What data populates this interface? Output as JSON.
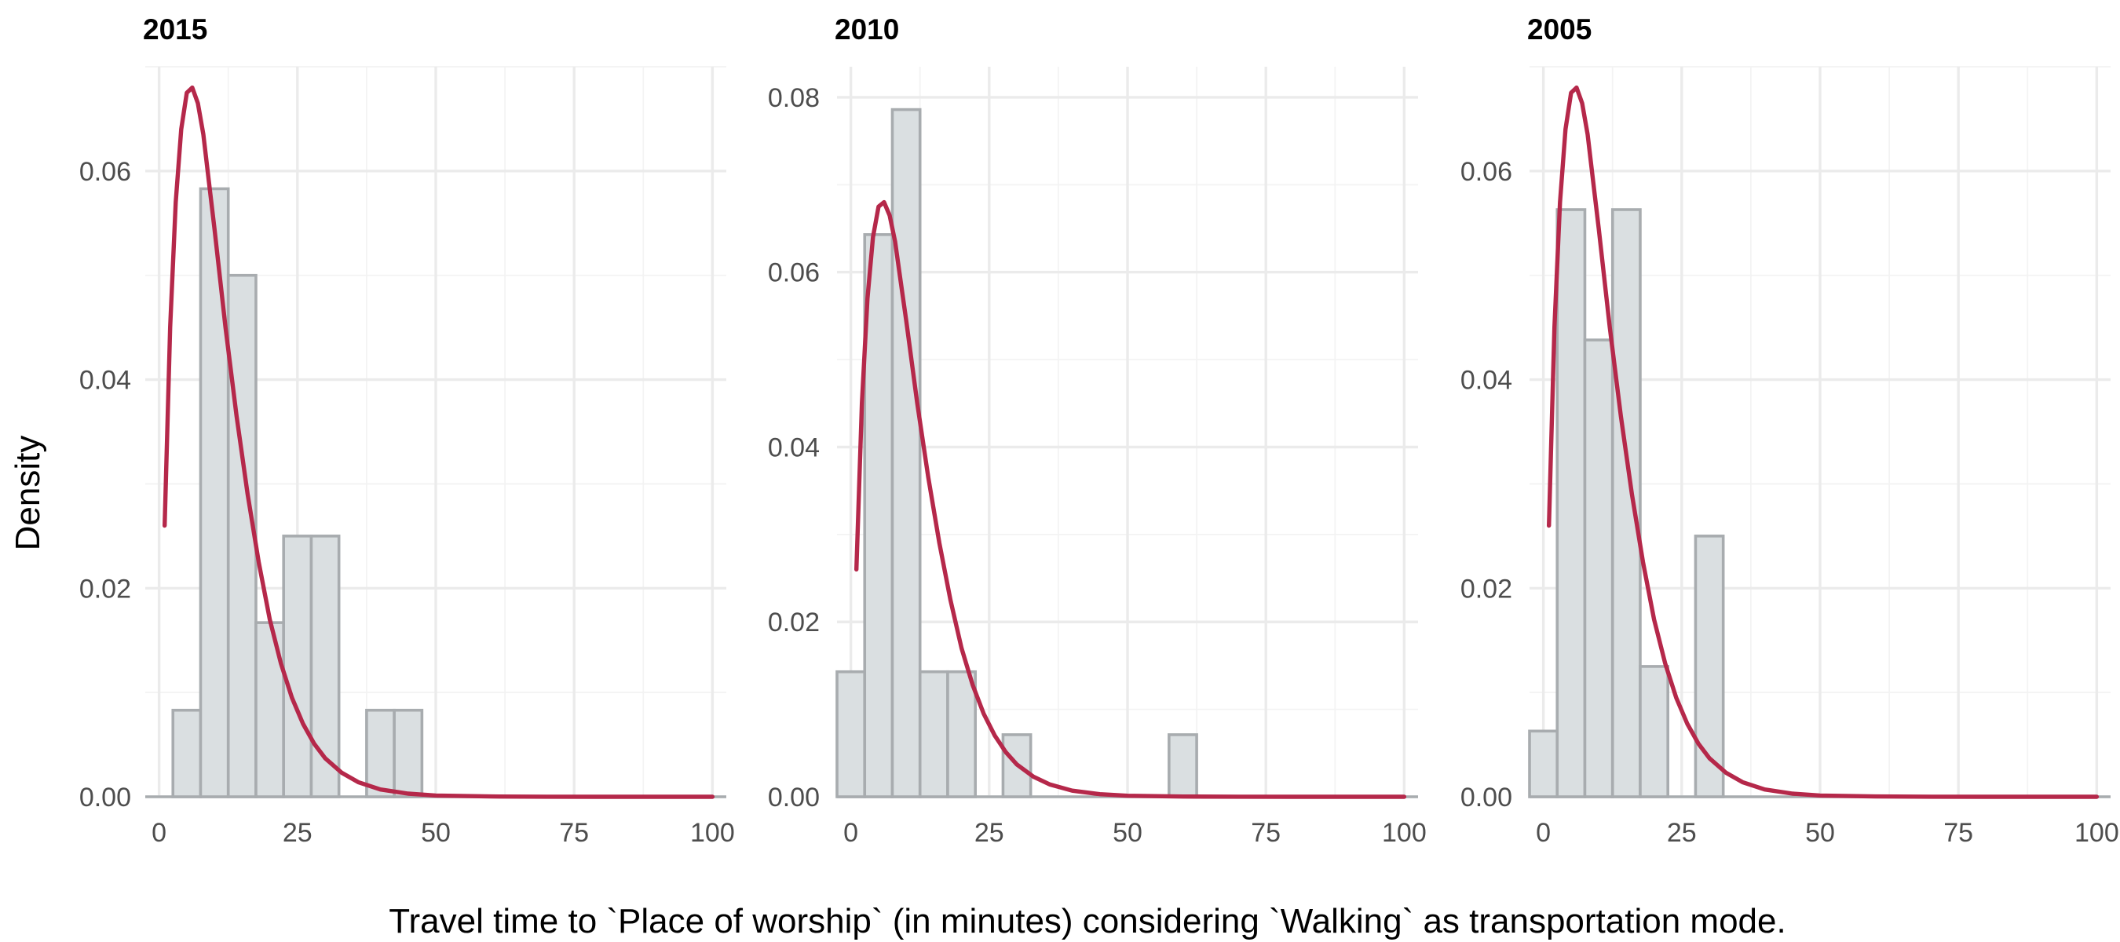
{
  "chart_data": {
    "type": "histogram-with-density",
    "xlabel": "Travel time to `Place of worship` (in minutes) considering `Walking` as transportation mode.",
    "ylabel": "Density",
    "grid": true,
    "legend": "none",
    "colors": {
      "bar_fill": "#dadfe1",
      "bar_edge": "#a8acaf",
      "density_line": "#b5284a"
    },
    "density_shared_for_all_panels": true,
    "panels": [
      {
        "title": "2015",
        "xlim": [
          -2.5,
          102.5
        ],
        "ylim": [
          0,
          0.07
        ],
        "x_ticks": [
          0,
          25,
          50,
          75,
          100
        ],
        "x_tick_labels": [
          "0",
          "25",
          "50",
          "75",
          "100"
        ],
        "y_ticks": [
          0,
          0.02,
          0.04,
          0.06
        ],
        "y_tick_labels": [
          "0.00",
          "0.02",
          "0.04",
          "0.06"
        ],
        "bins": [
          {
            "x0": 2.5,
            "x1": 7.5,
            "density": 0.0083
          },
          {
            "x0": 7.5,
            "x1": 12.5,
            "density": 0.0583
          },
          {
            "x0": 12.5,
            "x1": 17.5,
            "density": 0.05
          },
          {
            "x0": 17.5,
            "x1": 22.5,
            "density": 0.0167
          },
          {
            "x0": 22.5,
            "x1": 27.5,
            "density": 0.025
          },
          {
            "x0": 27.5,
            "x1": 32.5,
            "density": 0.025
          },
          {
            "x0": 37.5,
            "x1": 42.5,
            "density": 0.0083
          },
          {
            "x0": 42.5,
            "x1": 47.5,
            "density": 0.0083
          }
        ]
      },
      {
        "title": "2010",
        "xlim": [
          -2.5,
          102.5
        ],
        "ylim": [
          0,
          0.0835
        ],
        "x_ticks": [
          0,
          25,
          50,
          75,
          100
        ],
        "x_tick_labels": [
          "0",
          "25",
          "50",
          "75",
          "100"
        ],
        "y_ticks": [
          0,
          0.02,
          0.04,
          0.06,
          0.08
        ],
        "y_tick_labels": [
          "0.00",
          "0.02",
          "0.04",
          "0.06",
          "0.08"
        ],
        "bins": [
          {
            "x0": -2.5,
            "x1": 2.5,
            "density": 0.0143
          },
          {
            "x0": 2.5,
            "x1": 7.5,
            "density": 0.0643
          },
          {
            "x0": 7.5,
            "x1": 12.5,
            "density": 0.0786
          },
          {
            "x0": 12.5,
            "x1": 17.5,
            "density": 0.0143
          },
          {
            "x0": 17.5,
            "x1": 22.5,
            "density": 0.0143
          },
          {
            "x0": 27.5,
            "x1": 32.5,
            "density": 0.0071
          },
          {
            "x0": 57.5,
            "x1": 62.5,
            "density": 0.0071
          }
        ]
      },
      {
        "title": "2005",
        "xlim": [
          -2.5,
          102.5
        ],
        "ylim": [
          0,
          0.07
        ],
        "x_ticks": [
          0,
          25,
          50,
          75,
          100
        ],
        "x_tick_labels": [
          "0",
          "25",
          "50",
          "75",
          "100"
        ],
        "y_ticks": [
          0,
          0.02,
          0.04,
          0.06
        ],
        "y_tick_labels": [
          "0.00",
          "0.02",
          "0.04",
          "0.06"
        ],
        "bins": [
          {
            "x0": -2.5,
            "x1": 2.5,
            "density": 0.0063
          },
          {
            "x0": 2.5,
            "x1": 7.5,
            "density": 0.0563
          },
          {
            "x0": 7.5,
            "x1": 12.5,
            "density": 0.0438
          },
          {
            "x0": 12.5,
            "x1": 17.5,
            "density": 0.0563
          },
          {
            "x0": 17.5,
            "x1": 22.5,
            "density": 0.0125
          },
          {
            "x0": 27.5,
            "x1": 32.5,
            "density": 0.025
          }
        ]
      }
    ],
    "density_curve": {
      "x": [
        1,
        2,
        3,
        4,
        5,
        6,
        7,
        8,
        9,
        10,
        12,
        14,
        16,
        18,
        20,
        22,
        24,
        26,
        28,
        30,
        33,
        36,
        40,
        45,
        50,
        60,
        70,
        80,
        90,
        100
      ],
      "y": [
        0.026,
        0.045,
        0.057,
        0.064,
        0.0675,
        0.068,
        0.0665,
        0.0635,
        0.059,
        0.0545,
        0.045,
        0.0365,
        0.029,
        0.0225,
        0.017,
        0.0128,
        0.0095,
        0.007,
        0.0051,
        0.0037,
        0.0023,
        0.0014,
        0.0007,
        0.0003,
        0.00012,
        3e-05,
        1e-05,
        0.0,
        0.0,
        0.0
      ]
    }
  }
}
